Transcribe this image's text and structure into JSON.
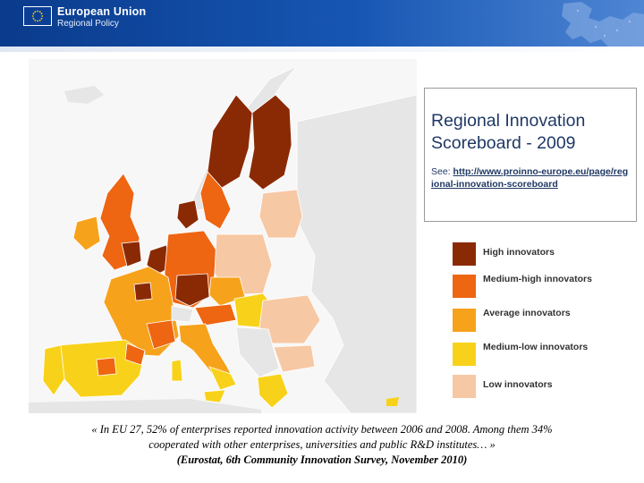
{
  "header": {
    "org_name": "European Union",
    "department": "Regional Policy"
  },
  "colors": {
    "header_dark": "#0a3b8c",
    "sea": "#f7f7f7",
    "non_eu": "#e6e6e6",
    "title_text": "#1f3864"
  },
  "map": {
    "title": "Regional Innovation Scoreboard - 2009",
    "see_label": "See: ",
    "see_url": "http://www.proinno-europe.eu/page/regional-innovation-scoreboard"
  },
  "legend": {
    "items": [
      {
        "label": "High innovators",
        "color": "#8a2a04"
      },
      {
        "label": "Medium-high innovators",
        "color": "#ee6512"
      },
      {
        "label": "Average innovators",
        "color": "#f7a21b"
      },
      {
        "label": "Medium-low innovators",
        "color": "#f8d21a"
      },
      {
        "label": "Low innovators",
        "color": "#f7c8a4"
      }
    ]
  },
  "caption": {
    "line1": "« In EU 27, 52% of enterprises reported innovation activity between 2006 and 2008. Among them 34%",
    "line2": "cooperated with other enterprises, universities and public R&D institutes… »",
    "line3": "(Eurostat, 6th Community Innovation Survey, November 2010)"
  }
}
